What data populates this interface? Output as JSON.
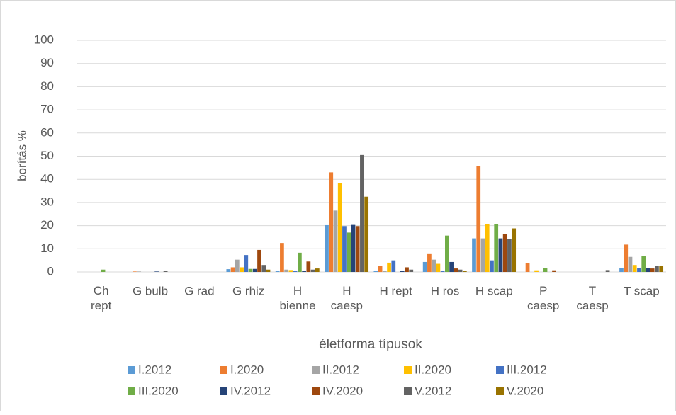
{
  "chart_data": {
    "type": "bar",
    "x_label": "életforma típusok",
    "y_label": "borítás %",
    "categories": [
      "Ch rept",
      "G bulb",
      "G rad",
      "G rhiz",
      "H bienne",
      "H caesp",
      "H rept",
      "H ros",
      "H scap",
      "P caesp",
      "T caesp",
      "T scap"
    ],
    "series": [
      {
        "name": "I.2012",
        "color": "#5b9bd5",
        "values": [
          0,
          0,
          0,
          1.2,
          0.5,
          20.2,
          0.3,
          4.3,
          14.5,
          0,
          0,
          1.7
        ]
      },
      {
        "name": "I.2020",
        "color": "#ed7d31",
        "values": [
          0,
          0.2,
          0,
          2,
          12.5,
          43,
          2.5,
          8,
          45.8,
          3.7,
          0,
          11.8
        ]
      },
      {
        "name": "II.2012",
        "color": "#a5a5a5",
        "values": [
          0,
          0.2,
          0,
          5.3,
          1,
          26.5,
          0.3,
          5.3,
          14.5,
          0,
          0,
          6.5
        ]
      },
      {
        "name": "II.2020",
        "color": "#ffc000",
        "values": [
          0,
          0,
          0,
          2,
          0.8,
          38.5,
          4,
          3.5,
          20.5,
          0.7,
          0,
          3
        ]
      },
      {
        "name": "III.2012",
        "color": "#4472c4",
        "values": [
          0,
          0,
          0,
          7.3,
          0.5,
          19.8,
          5,
          0.3,
          5,
          0,
          0,
          1.7
        ]
      },
      {
        "name": "III.2020",
        "color": "#70ad47",
        "values": [
          1,
          0,
          0,
          1.3,
          8.3,
          17,
          0,
          15.7,
          20.5,
          1.6,
          0,
          7
        ]
      },
      {
        "name": "IV.2012",
        "color": "#264478",
        "values": [
          0,
          0.2,
          0,
          1.3,
          0.5,
          20.3,
          0.5,
          4.3,
          14.5,
          0,
          0,
          1.8
        ]
      },
      {
        "name": "IV.2020",
        "color": "#9e480e",
        "values": [
          0,
          0,
          0,
          9.5,
          4.5,
          19.8,
          2,
          1.5,
          16.5,
          0.7,
          0,
          1.5
        ]
      },
      {
        "name": "V.2012",
        "color": "#636363",
        "values": [
          0,
          0.5,
          0,
          3,
          1,
          50.5,
          1,
          1,
          14.2,
          0,
          0.8,
          2.5
        ]
      },
      {
        "name": "V.2020",
        "color": "#997300",
        "values": [
          0,
          0,
          0,
          1,
          1.5,
          32.5,
          0,
          0.3,
          18.8,
          0,
          0,
          2.5
        ]
      }
    ],
    "ylim": [
      0,
      100
    ],
    "yticks": [
      0,
      10,
      20,
      30,
      40,
      50,
      60,
      70,
      80,
      90,
      100
    ],
    "grid": true,
    "legend": "bottom"
  }
}
